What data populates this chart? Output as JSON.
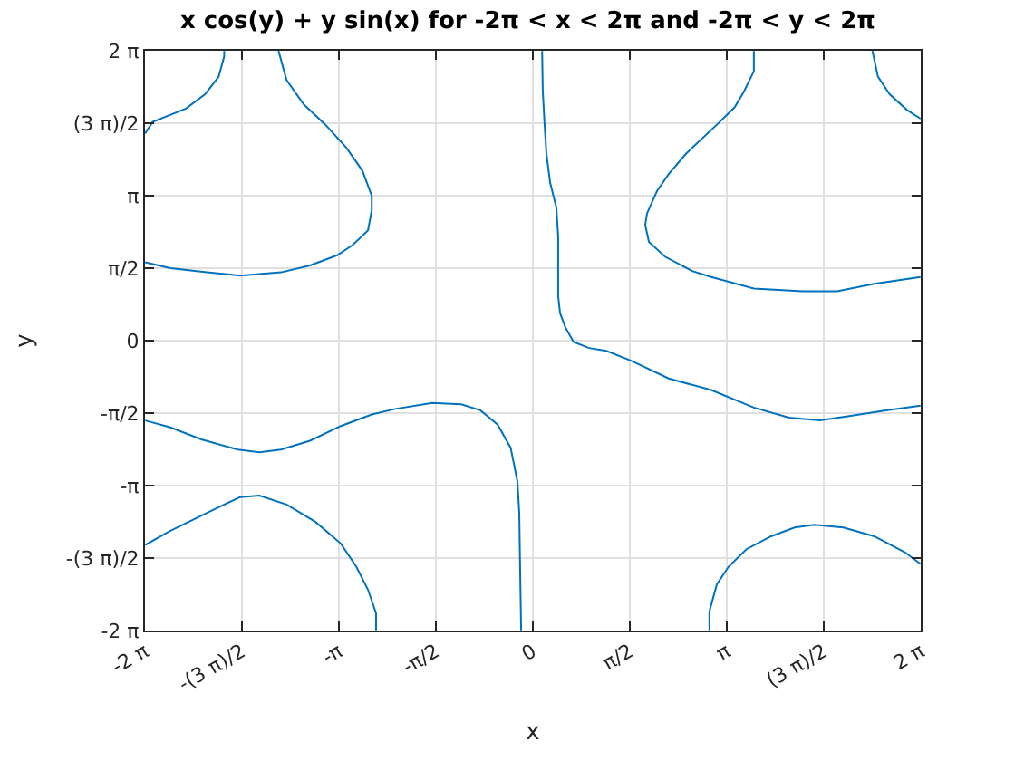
{
  "chart_data": {
    "type": "line",
    "title": "x cos(y) + y sin(x) for -2π < x < 2π and -2π < y < 2π",
    "xlabel": "x",
    "ylabel": "y",
    "xlim": [
      -6.2832,
      6.2832
    ],
    "ylim": [
      -6.2832,
      6.2832
    ],
    "xticks": [
      {
        "value": -6.2832,
        "label": "-2 π"
      },
      {
        "value": -4.7124,
        "label": "-(3 π)/2"
      },
      {
        "value": -3.1416,
        "label": "-π"
      },
      {
        "value": -1.5708,
        "label": "-π/2"
      },
      0,
      {
        "value": 1.5708,
        "label": "π/2"
      },
      {
        "value": 3.1416,
        "label": "π"
      },
      {
        "value": 4.7124,
        "label": "(3 π)/2"
      },
      {
        "value": 6.2832,
        "label": "2 π"
      }
    ],
    "yticks": [
      {
        "value": -6.2832,
        "label": "-2 π"
      },
      {
        "value": -4.7124,
        "label": "-(3 π)/2"
      },
      {
        "value": -3.1416,
        "label": "-π"
      },
      {
        "value": -1.5708,
        "label": "-π/2"
      },
      0,
      {
        "value": 1.5708,
        "label": "π/2"
      },
      {
        "value": 3.1416,
        "label": "π"
      },
      {
        "value": 4.7124,
        "label": "(3 π)/2"
      },
      {
        "value": 6.2832,
        "label": "2 π"
      }
    ],
    "grid": true,
    "marker": "none",
    "line_style": "solid",
    "series": [
      {
        "color": "#0072bd",
        "x": [
          -6.28,
          -6.16,
          -5.62,
          -5.31,
          -5.09,
          -5.0,
          -5.0
        ],
        "values": [
          4.49,
          4.74,
          5.03,
          5.34,
          5.72,
          6.16,
          6.28
        ]
      },
      {
        "color": "#0072bd",
        "x": [
          -4.12,
          -3.99,
          -3.71,
          -3.36,
          -3.02,
          -2.76,
          -2.61,
          -2.61,
          -2.67,
          -2.92,
          -3.17,
          -3.61,
          -4.08,
          -4.74,
          -5.28,
          -5.87,
          -6.28
        ],
        "values": [
          6.28,
          5.65,
          5.12,
          4.68,
          4.18,
          3.68,
          3.14,
          2.83,
          2.39,
          2.07,
          1.85,
          1.63,
          1.48,
          1.41,
          1.48,
          1.57,
          1.7
        ]
      },
      {
        "color": "#0072bd",
        "x": [
          0.15,
          0.16,
          0.19,
          0.22,
          0.28,
          0.38,
          0.41,
          0.41,
          0.41,
          0.44,
          0.53,
          0.66,
          0.91,
          1.19,
          1.6,
          2.2,
          2.89,
          3.58,
          4.15,
          4.65,
          5.15,
          5.72,
          6.28
        ],
        "values": [
          6.28,
          5.43,
          4.68,
          4.05,
          3.42,
          2.89,
          2.26,
          1.76,
          0.97,
          0.6,
          0.28,
          -0.03,
          -0.16,
          -0.22,
          -0.44,
          -0.82,
          -1.07,
          -1.45,
          -1.67,
          -1.73,
          -1.63,
          -1.51,
          -1.41
        ]
      },
      {
        "color": "#0072bd",
        "x": [
          5.5,
          5.59,
          5.78,
          6.06,
          6.28
        ],
        "values": [
          6.28,
          5.72,
          5.34,
          5.0,
          4.81
        ]
      },
      {
        "color": "#0072bd",
        "x": [
          3.58,
          3.58,
          3.42,
          3.27,
          2.98,
          2.48,
          2.2,
          2.01,
          1.85,
          1.82,
          1.88,
          2.14,
          2.58,
          2.89,
          3.58,
          4.37,
          4.93,
          5.53,
          6.28
        ],
        "values": [
          6.28,
          5.84,
          5.4,
          5.06,
          4.68,
          4.05,
          3.61,
          3.24,
          2.76,
          2.51,
          2.14,
          1.82,
          1.51,
          1.38,
          1.13,
          1.07,
          1.07,
          1.23,
          1.38
        ]
      },
      {
        "color": "#0072bd",
        "x": [
          -6.28,
          -5.87,
          -5.37,
          -4.78,
          -4.43,
          -4.08,
          -3.61,
          -3.11,
          -2.61,
          -2.23,
          -1.63,
          -1.16,
          -0.85,
          -0.57,
          -0.36,
          -0.25,
          -0.22,
          -0.21,
          -0.19
        ],
        "values": [
          -1.73,
          -1.88,
          -2.14,
          -2.36,
          -2.42,
          -2.36,
          -2.17,
          -1.85,
          -1.6,
          -1.48,
          -1.35,
          -1.38,
          -1.51,
          -1.82,
          -2.32,
          -3.05,
          -3.74,
          -4.65,
          -6.28
        ]
      },
      {
        "color": "#0072bd",
        "x": [
          -6.28,
          -5.87,
          -5.09,
          -4.74,
          -4.43,
          -3.99,
          -3.52,
          -3.11,
          -2.86,
          -2.67,
          -2.54,
          -2.54
        ],
        "values": [
          -4.43,
          -4.12,
          -3.61,
          -3.39,
          -3.36,
          -3.55,
          -3.93,
          -4.4,
          -4.9,
          -5.4,
          -5.91,
          -6.28
        ]
      },
      {
        "color": "#0072bd",
        "x": [
          2.86,
          2.86,
          2.98,
          3.17,
          3.46,
          3.86,
          4.24,
          4.56,
          5.03,
          5.53,
          6.03,
          6.28
        ],
        "values": [
          -6.28,
          -5.87,
          -5.28,
          -4.9,
          -4.52,
          -4.24,
          -4.05,
          -3.99,
          -4.05,
          -4.24,
          -4.59,
          -4.84
        ]
      }
    ]
  }
}
